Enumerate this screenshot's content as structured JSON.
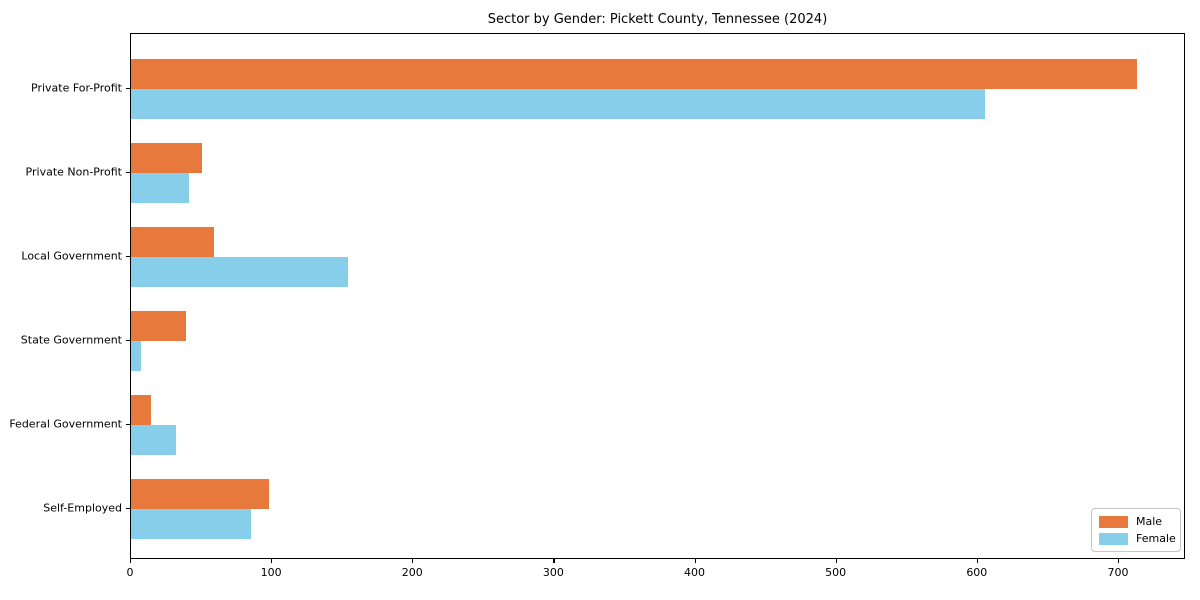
{
  "chart_data": {
    "type": "bar",
    "orientation": "horizontal",
    "title": "Sector by Gender: Pickett County, Tennessee (2024)",
    "categories": [
      "Private For-Profit",
      "Private Non-Profit",
      "Local Government",
      "State Government",
      "Federal Government",
      "Self-Employed"
    ],
    "series": [
      {
        "name": "Male",
        "color": "#E8793D",
        "values": [
          713,
          50,
          59,
          39,
          14,
          98
        ]
      },
      {
        "name": "Female",
        "color": "#87CEEB",
        "values": [
          605,
          41,
          154,
          7,
          32,
          85
        ]
      }
    ],
    "xlabel": "",
    "ylabel": "",
    "xlim": [
      0,
      747.5
    ],
    "xticks": [
      0,
      100,
      200,
      300,
      400,
      500,
      600,
      700
    ],
    "grid": false,
    "legend_position": "lower right",
    "background_color": "#ffffff",
    "spine_color": "#000000"
  }
}
